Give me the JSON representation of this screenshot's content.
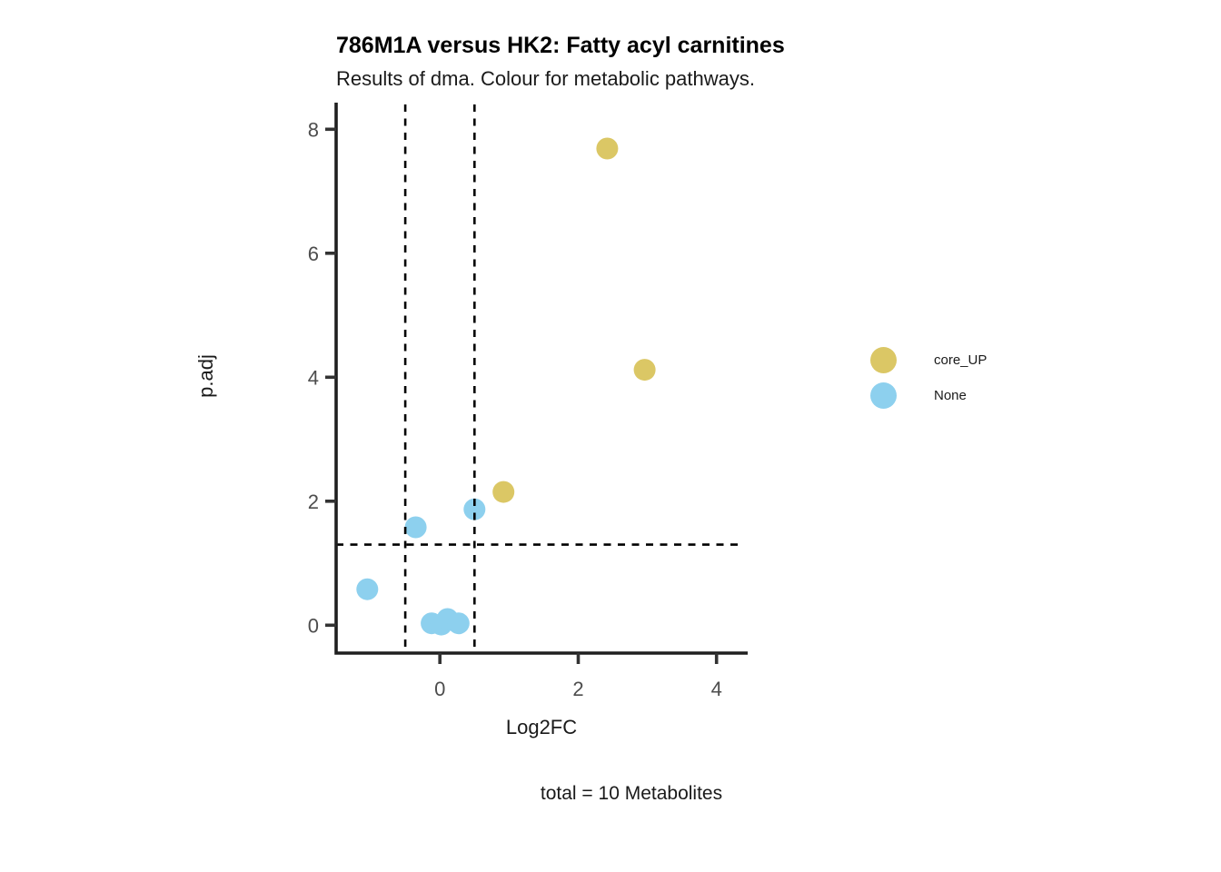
{
  "header": {
    "title": "786M1A versus HK2: Fatty acyl carnitines",
    "subtitle": "Results of dma. Colour for metabolic pathways."
  },
  "chart_data": {
    "type": "scatter",
    "title": "786M1A versus HK2: Fatty acyl carnitines",
    "subtitle": "Results of dma. Colour for metabolic pathways.",
    "xlabel": "Log2FC",
    "ylabel": "p.adj",
    "caption": "total = 10 Metabolites",
    "xlim": [
      -1.5,
      4.45
    ],
    "ylim": [
      -0.45,
      8.4
    ],
    "x_ticks": [
      0,
      2,
      4
    ],
    "y_ticks": [
      0,
      2,
      4,
      6,
      8
    ],
    "grid": false,
    "legend_position": "right",
    "point_radius": 12,
    "threshold_lines": {
      "style": "dashed",
      "vertical_x": [
        -0.5,
        0.5
      ],
      "horizontal_y": 1.3
    },
    "series": [
      {
        "name": "core_UP",
        "color": "#DBC765",
        "points": [
          {
            "x": 2.42,
            "y": 7.69
          },
          {
            "x": 2.96,
            "y": 4.12
          },
          {
            "x": 0.92,
            "y": 2.15
          }
        ]
      },
      {
        "name": "None",
        "color": "#8DD0EE",
        "points": [
          {
            "x": 0.5,
            "y": 1.87
          },
          {
            "x": -0.35,
            "y": 1.58
          },
          {
            "x": -1.05,
            "y": 0.58
          },
          {
            "x": -0.12,
            "y": 0.03
          },
          {
            "x": 0.02,
            "y": 0.01
          },
          {
            "x": 0.11,
            "y": 0.1
          },
          {
            "x": 0.27,
            "y": 0.03
          }
        ]
      }
    ]
  },
  "legend": {
    "items": [
      {
        "label": "core_UP",
        "color": "#DBC765"
      },
      {
        "label": "None",
        "color": "#8DD0EE"
      }
    ]
  },
  "colors": {
    "axis": "#1f1f1f",
    "tick": "#333333",
    "tick_label": "#4d4d4d",
    "threshold": "#000000"
  }
}
